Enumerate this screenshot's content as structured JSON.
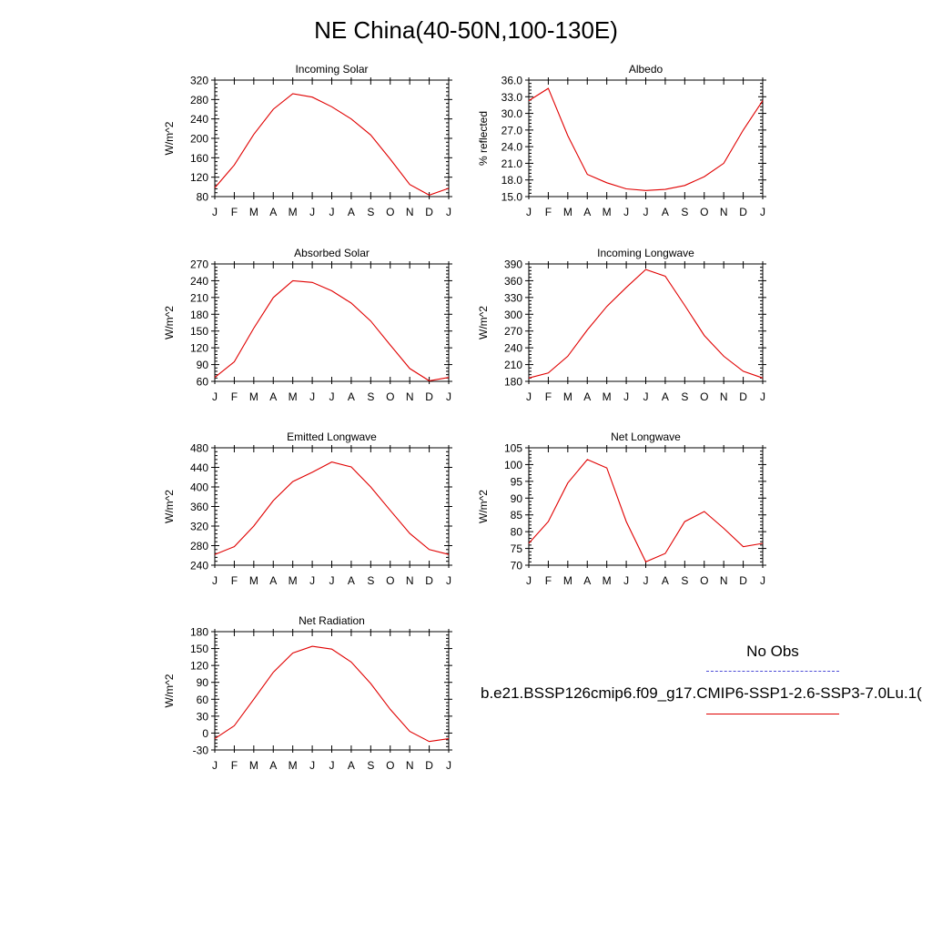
{
  "page": {
    "title": "NE China(40-50N,100-130E)"
  },
  "legend": {
    "obs_label": "No Obs",
    "obs_color": "#4b4bd6",
    "model_label": "b.e21.BSSP126cmip6.f09_g17.CMIP6-SSP1-2.6-SSP3-7.0Lu.1(",
    "model_color": "#e00000"
  },
  "chart_data": [
    {
      "type": "line",
      "title": "Incoming Solar",
      "ylabel": "W/m^2",
      "x": [
        "J",
        "F",
        "M",
        "A",
        "M",
        "J",
        "J",
        "A",
        "S",
        "O",
        "N",
        "D",
        "J"
      ],
      "ylim": [
        80,
        320
      ],
      "yticks": [
        "80",
        "120",
        "160",
        "200",
        "240",
        "280",
        "320"
      ],
      "series": [
        {
          "color": "#e00000",
          "values": [
            98,
            145,
            208,
            260,
            292,
            285,
            265,
            240,
            207,
            157,
            105,
            83,
            97
          ]
        }
      ]
    },
    {
      "type": "line",
      "title": "Albedo",
      "ylabel": "% reflected",
      "x": [
        "J",
        "F",
        "M",
        "A",
        "M",
        "J",
        "J",
        "A",
        "S",
        "O",
        "N",
        "D",
        "J"
      ],
      "ylim": [
        15.0,
        36.0
      ],
      "yticks": [
        "15.0",
        "18.0",
        "21.0",
        "24.0",
        "27.0",
        "30.0",
        "33.0",
        "36.0"
      ],
      "series": [
        {
          "color": "#e00000",
          "values": [
            32.3,
            34.5,
            26.0,
            19.0,
            17.5,
            16.4,
            16.1,
            16.3,
            17.0,
            18.6,
            21.0,
            27.0,
            32.3
          ]
        }
      ]
    },
    {
      "type": "line",
      "title": "Absorbed Solar",
      "ylabel": "W/m^2",
      "x": [
        "J",
        "F",
        "M",
        "A",
        "M",
        "J",
        "J",
        "A",
        "S",
        "O",
        "N",
        "D",
        "J"
      ],
      "ylim": [
        60,
        270
      ],
      "yticks": [
        "60",
        "90",
        "120",
        "150",
        "180",
        "210",
        "240",
        "270"
      ],
      "series": [
        {
          "color": "#e00000",
          "values": [
            67,
            95,
            155,
            210,
            240,
            237,
            222,
            200,
            168,
            125,
            83,
            61,
            67
          ]
        }
      ]
    },
    {
      "type": "line",
      "title": "Incoming Longwave",
      "ylabel": "W/m^2",
      "x": [
        "J",
        "F",
        "M",
        "A",
        "M",
        "J",
        "J",
        "A",
        "S",
        "O",
        "N",
        "D",
        "J"
      ],
      "ylim": [
        180,
        390
      ],
      "yticks": [
        "180",
        "210",
        "240",
        "270",
        "300",
        "330",
        "360",
        "390"
      ],
      "series": [
        {
          "color": "#e00000",
          "values": [
            186,
            195,
            225,
            272,
            314,
            348,
            380,
            368,
            316,
            262,
            225,
            198,
            186
          ]
        }
      ]
    },
    {
      "type": "line",
      "title": "Emitted Longwave",
      "ylabel": "W/m^2",
      "x": [
        "J",
        "F",
        "M",
        "A",
        "M",
        "J",
        "J",
        "A",
        "S",
        "O",
        "N",
        "D",
        "J"
      ],
      "ylim": [
        240,
        480
      ],
      "yticks": [
        "240",
        "280",
        "320",
        "360",
        "400",
        "440",
        "480"
      ],
      "series": [
        {
          "color": "#e00000",
          "values": [
            262,
            278,
            320,
            372,
            411,
            430,
            451,
            441,
            400,
            352,
            305,
            272,
            262
          ]
        }
      ]
    },
    {
      "type": "line",
      "title": "Net Longwave",
      "ylabel": "W/m^2",
      "x": [
        "J",
        "F",
        "M",
        "A",
        "M",
        "J",
        "J",
        "A",
        "S",
        "O",
        "N",
        "D",
        "J"
      ],
      "ylim": [
        70,
        105
      ],
      "yticks": [
        "70",
        "75",
        "80",
        "85",
        "90",
        "95",
        "100",
        "105"
      ],
      "series": [
        {
          "color": "#e00000",
          "values": [
            76.5,
            83,
            94.5,
            101.5,
            99,
            83,
            71,
            73.5,
            83,
            86,
            81,
            75.5,
            76.5
          ]
        }
      ]
    },
    {
      "type": "line",
      "title": "Net Radiation",
      "ylabel": "W/m^2",
      "x": [
        "J",
        "F",
        "M",
        "A",
        "M",
        "J",
        "J",
        "A",
        "S",
        "O",
        "N",
        "D",
        "J"
      ],
      "ylim": [
        -30,
        180
      ],
      "yticks": [
        "-30",
        "0",
        "30",
        "60",
        "90",
        "120",
        "150",
        "180"
      ],
      "series": [
        {
          "color": "#e00000",
          "values": [
            -10,
            13,
            60,
            108,
            142,
            154,
            149,
            126,
            88,
            42,
            3,
            -15,
            -10
          ]
        }
      ]
    }
  ]
}
